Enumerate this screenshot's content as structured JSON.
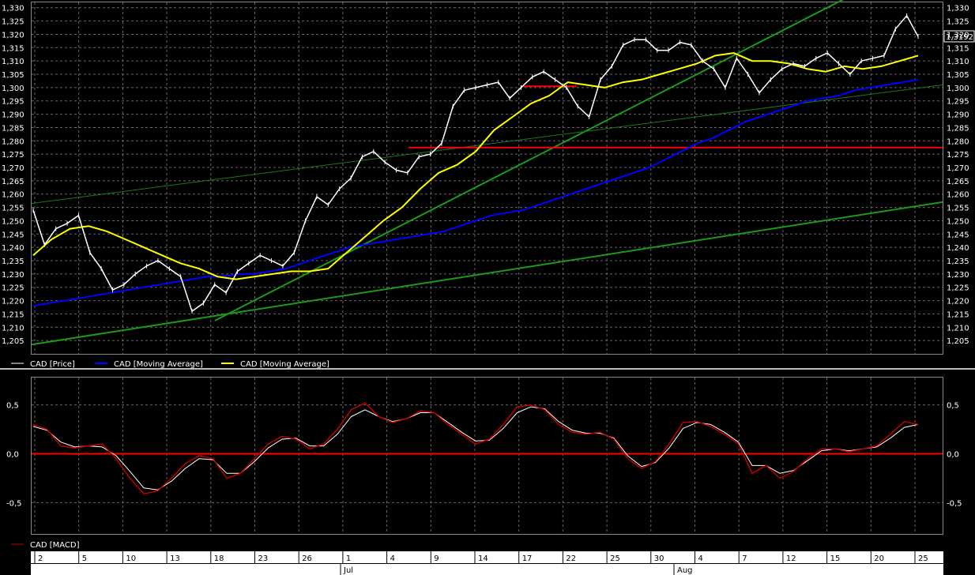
{
  "chart_data": [
    {
      "type": "line",
      "panel": "price",
      "ylim": [
        1.2,
        1.332
      ],
      "y_ticks": [
        "1,205",
        "1,210",
        "1,215",
        "1,220",
        "1,225",
        "1,230",
        "1,235",
        "1,240",
        "1,245",
        "1,250",
        "1,255",
        "1,260",
        "1,265",
        "1,270",
        "1,275",
        "1,280",
        "1,285",
        "1,290",
        "1,295",
        "1,300",
        "1,305",
        "1,310",
        "1,315",
        "1,320",
        "1,325",
        "1,330"
      ],
      "last_value_label": "1,3192",
      "grid": true,
      "legend": [
        {
          "label": "CAD [Price]",
          "color": "#ffffff"
        },
        {
          "label": "CAD [Moving Average]",
          "color": "#0000ff"
        },
        {
          "label": "CAD [Moving Average]",
          "color": "#ffff00"
        }
      ],
      "series": [
        {
          "name": "CAD [Price]",
          "color": "#ffffff",
          "values": [
            1.254,
            1.241,
            1.247,
            1.249,
            1.252,
            1.238,
            1.232,
            1.224,
            1.226,
            1.23,
            1.233,
            1.235,
            1.232,
            1.229,
            1.216,
            1.219,
            1.226,
            1.223,
            1.231,
            1.234,
            1.237,
            1.235,
            1.233,
            1.238,
            1.25,
            1.259,
            1.256,
            1.262,
            1.266,
            1.274,
            1.276,
            1.272,
            1.269,
            1.268,
            1.274,
            1.275,
            1.279,
            1.293,
            1.299,
            1.3,
            1.301,
            1.302,
            1.296,
            1.3,
            1.304,
            1.306,
            1.303,
            1.3,
            1.293,
            1.289,
            1.303,
            1.308,
            1.316,
            1.318,
            1.318,
            1.314,
            1.314,
            1.317,
            1.316,
            1.31,
            1.307,
            1.3,
            1.311,
            1.305,
            1.298,
            1.303,
            1.307,
            1.309,
            1.308,
            1.311,
            1.313,
            1.309,
            1.305,
            1.31,
            1.311,
            1.312,
            1.322,
            1.327,
            1.3192
          ]
        },
        {
          "name": "CAD [Moving Average]",
          "color": "#0000ff",
          "values": [
            1.218,
            1.219,
            1.22,
            1.221,
            1.222,
            1.223,
            1.224,
            1.225,
            1.226,
            1.227,
            1.228,
            1.229,
            1.229,
            1.23,
            1.23,
            1.231,
            1.232,
            1.234,
            1.236,
            1.238,
            1.24,
            1.241,
            1.242,
            1.243,
            1.244,
            1.245,
            1.246,
            1.248,
            1.25,
            1.252,
            1.253,
            1.254,
            1.256,
            1.258,
            1.26,
            1.262,
            1.264,
            1.266,
            1.268,
            1.27,
            1.273,
            1.276,
            1.279,
            1.281,
            1.284,
            1.287,
            1.289,
            1.291,
            1.293,
            1.295,
            1.296,
            1.297,
            1.299,
            1.3,
            1.301,
            1.302,
            1.303
          ]
        },
        {
          "name": "CAD [Moving Average]",
          "color": "#ffff00",
          "values": [
            1.237,
            1.243,
            1.247,
            1.248,
            1.246,
            1.243,
            1.24,
            1.237,
            1.234,
            1.232,
            1.229,
            1.228,
            1.229,
            1.23,
            1.231,
            1.231,
            1.232,
            1.238,
            1.244,
            1.25,
            1.255,
            1.262,
            1.268,
            1.271,
            1.276,
            1.284,
            1.289,
            1.294,
            1.297,
            1.302,
            1.301,
            1.3,
            1.302,
            1.303,
            1.305,
            1.307,
            1.309,
            1.312,
            1.313,
            1.31,
            1.31,
            1.309,
            1.307,
            1.306,
            1.308,
            1.307,
            1.308,
            1.31,
            1.312
          ]
        }
      ]
    },
    {
      "type": "line",
      "panel": "macd",
      "ylim": [
        -0.82,
        0.78
      ],
      "y_ticks": [
        "0,5",
        "0,0",
        "-0,5"
      ],
      "legend": [
        {
          "label": "CAD [MACD]",
          "color": "#c00000"
        }
      ],
      "series": [
        {
          "name": "CAD [MACD]",
          "color": "#c00000",
          "values": [
            0.3,
            0.25,
            0.08,
            0.06,
            0.08,
            0.1,
            -0.05,
            -0.25,
            -0.41,
            -0.38,
            -0.25,
            -0.1,
            -0.02,
            -0.05,
            -0.25,
            -0.2,
            -0.05,
            0.1,
            0.18,
            0.15,
            0.05,
            0.1,
            0.25,
            0.45,
            0.52,
            0.38,
            0.32,
            0.36,
            0.44,
            0.42,
            0.3,
            0.2,
            0.1,
            0.15,
            0.3,
            0.48,
            0.5,
            0.45,
            0.3,
            0.22,
            0.2,
            0.22,
            0.15,
            -0.05,
            -0.15,
            -0.08,
            0.1,
            0.32,
            0.33,
            0.28,
            0.2,
            0.1,
            -0.2,
            -0.12,
            -0.25,
            -0.18,
            -0.05,
            0.05,
            0.05,
            0.02,
            0.05,
            0.08,
            0.2,
            0.33,
            0.3
          ]
        },
        {
          "name": "signal",
          "color": "#ffffff",
          "values": [
            0.28,
            0.24,
            0.12,
            0.07,
            0.08,
            0.07,
            -0.02,
            -0.18,
            -0.35,
            -0.37,
            -0.28,
            -0.15,
            -0.05,
            -0.06,
            -0.2,
            -0.2,
            -0.08,
            0.06,
            0.15,
            0.16,
            0.08,
            0.08,
            0.2,
            0.38,
            0.45,
            0.38,
            0.33,
            0.36,
            0.42,
            0.42,
            0.32,
            0.22,
            0.13,
            0.14,
            0.26,
            0.42,
            0.48,
            0.46,
            0.33,
            0.24,
            0.21,
            0.21,
            0.16,
            -0.02,
            -0.13,
            -0.09,
            0.06,
            0.26,
            0.32,
            0.3,
            0.22,
            0.12,
            -0.12,
            -0.12,
            -0.2,
            -0.17,
            -0.07,
            0.03,
            0.05,
            0.03,
            0.05,
            0.07,
            0.16,
            0.27,
            0.3
          ]
        }
      ]
    }
  ],
  "x_axis": {
    "day_labels": [
      "2",
      "5",
      "10",
      "13",
      "18",
      "23",
      "26",
      "1",
      "4",
      "9",
      "14",
      "17",
      "22",
      "25",
      "30",
      "4",
      "7",
      "12",
      "15",
      "20",
      "25"
    ],
    "month_labels": [
      "Jul",
      "Aug"
    ]
  }
}
